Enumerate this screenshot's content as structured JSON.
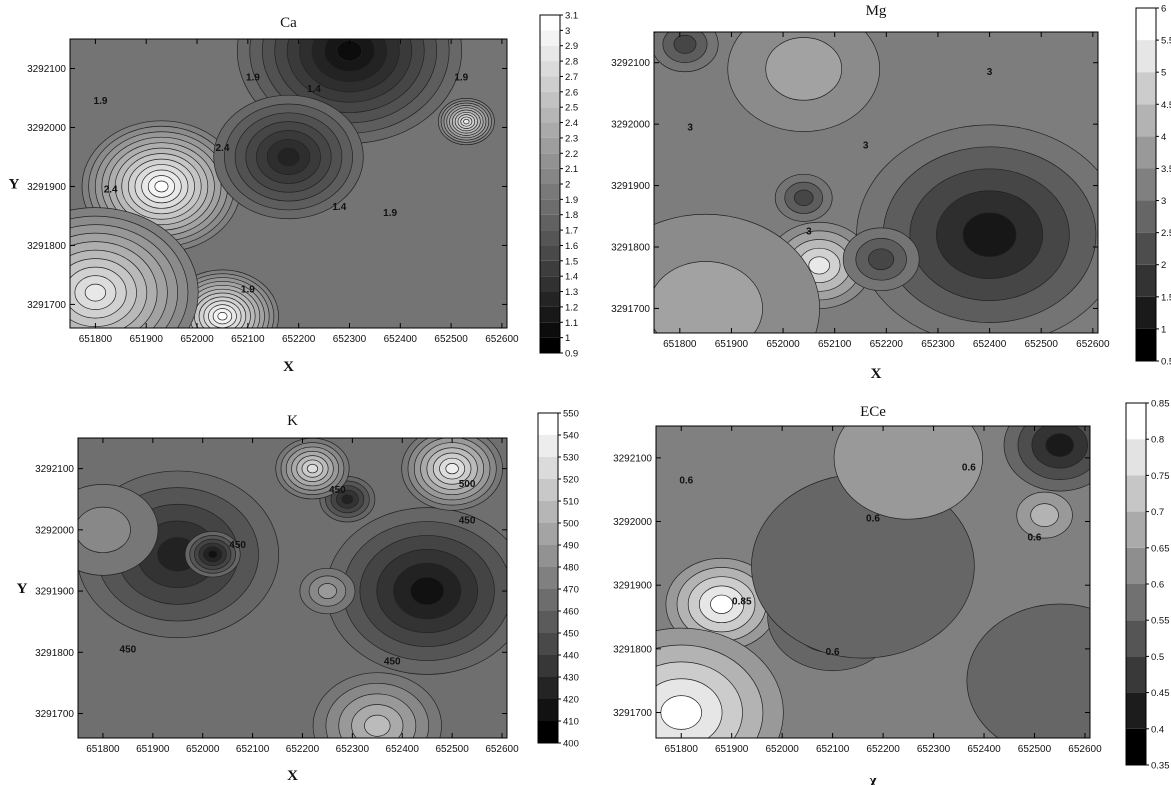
{
  "chart_data": [
    {
      "type": "heatmap",
      "title": "Ca",
      "xlabel": "X",
      "ylabel": "Y",
      "x_ticks": [
        651800,
        651900,
        652000,
        652100,
        652200,
        652300,
        652400,
        652500,
        652600
      ],
      "y_ticks": [
        3291700,
        3291800,
        3291900,
        3292000,
        3292100
      ],
      "xlim": [
        651750,
        652610
      ],
      "ylim": [
        3291660,
        3292150
      ],
      "colorbar_levels": [
        0.9,
        1,
        1.1,
        1.2,
        1.3,
        1.4,
        1.5,
        1.6,
        1.7,
        1.8,
        1.9,
        2,
        2.1,
        2.2,
        2.3,
        2.4,
        2.5,
        2.6,
        2.7,
        2.8,
        2.9,
        3,
        3.1
      ],
      "contour_labels": [
        {
          "x": 651810,
          "y": 3292040,
          "text": "1.9"
        },
        {
          "x": 652110,
          "y": 3292080,
          "text": "1.9"
        },
        {
          "x": 652050,
          "y": 3291960,
          "text": "2.4"
        },
        {
          "x": 651830,
          "y": 3291890,
          "text": "2.4"
        },
        {
          "x": 652230,
          "y": 3292060,
          "text": "1.4"
        },
        {
          "x": 652280,
          "y": 3291860,
          "text": "1.4"
        },
        {
          "x": 652380,
          "y": 3291850,
          "text": "1.9"
        },
        {
          "x": 652100,
          "y": 3291720,
          "text": "1.9"
        },
        {
          "x": 652520,
          "y": 3292080,
          "text": "1.9"
        }
      ],
      "features": [
        {
          "x": 651930,
          "y": 3291900,
          "value": 3.1,
          "spread": 85
        },
        {
          "x": 652050,
          "y": 3291680,
          "value": 3.1,
          "spread": 60
        },
        {
          "x": 651800,
          "y": 3291720,
          "value": 2.9,
          "spread": 110
        },
        {
          "x": 652300,
          "y": 3292130,
          "value": 0.95,
          "spread": 120
        },
        {
          "x": 652180,
          "y": 3291950,
          "value": 1.2,
          "spread": 80
        },
        {
          "x": 652530,
          "y": 3292010,
          "value": 2.9,
          "spread": 30
        },
        {
          "x": 652550,
          "y": 3291750,
          "value": 1.9,
          "spread": 110
        }
      ],
      "background_value": 1.9
    },
    {
      "type": "heatmap",
      "title": "Mg",
      "xlabel": "X",
      "ylabel": "",
      "x_ticks": [
        651800,
        651900,
        652000,
        652100,
        652200,
        652300,
        652400,
        652500,
        652600
      ],
      "y_ticks": [
        3291700,
        3291800,
        3291900,
        3292000,
        3292100
      ],
      "xlim": [
        651750,
        652610
      ],
      "ylim": [
        3291660,
        3292150
      ],
      "colorbar_levels": [
        0.5,
        1,
        1.5,
        2,
        2.5,
        3,
        3.5,
        4,
        4.5,
        5,
        5.5,
        6
      ],
      "contour_labels": [
        {
          "x": 651820,
          "y": 3291990,
          "text": "3"
        },
        {
          "x": 652400,
          "y": 3292080,
          "text": "3"
        },
        {
          "x": 652160,
          "y": 3291960,
          "text": "3"
        },
        {
          "x": 652050,
          "y": 3291820,
          "text": "3"
        }
      ],
      "features": [
        {
          "x": 652070,
          "y": 3291770,
          "value": 5.6,
          "spread": 55
        },
        {
          "x": 652400,
          "y": 3291820,
          "value": 1.0,
          "spread": 140
        },
        {
          "x": 652190,
          "y": 3291780,
          "value": 2.0,
          "spread": 40
        },
        {
          "x": 652040,
          "y": 3291880,
          "value": 2.0,
          "spread": 30
        },
        {
          "x": 652040,
          "y": 3292090,
          "value": 4.3,
          "spread": 80
        },
        {
          "x": 651810,
          "y": 3292130,
          "value": 2.0,
          "spread": 35
        },
        {
          "x": 651850,
          "y": 3291700,
          "value": 4.0,
          "spread": 120
        }
      ],
      "background_value": 3.2
    },
    {
      "type": "heatmap",
      "title": "K",
      "xlabel": "X",
      "ylabel": "Y",
      "x_ticks": [
        651800,
        651900,
        652000,
        652100,
        652200,
        652300,
        652400,
        652500,
        652600
      ],
      "y_ticks": [
        3291700,
        3291800,
        3291900,
        3292000,
        3292100
      ],
      "xlim": [
        651750,
        652610
      ],
      "ylim": [
        3291660,
        3292150
      ],
      "colorbar_levels": [
        400,
        410,
        420,
        430,
        440,
        450,
        460,
        470,
        480,
        490,
        500,
        510,
        520,
        530,
        540,
        550
      ],
      "contour_labels": [
        {
          "x": 652070,
          "y": 3291970,
          "text": "450"
        },
        {
          "x": 651850,
          "y": 3291800,
          "text": "450"
        },
        {
          "x": 652270,
          "y": 3292060,
          "text": "450"
        },
        {
          "x": 652530,
          "y": 3292070,
          "text": "500"
        },
        {
          "x": 652530,
          "y": 3292010,
          "text": "450"
        },
        {
          "x": 652380,
          "y": 3291780,
          "text": "450"
        }
      ],
      "features": [
        {
          "x": 651950,
          "y": 3291960,
          "value": 420,
          "spread": 110
        },
        {
          "x": 652020,
          "y": 3291960,
          "value": 405,
          "spread": 30
        },
        {
          "x": 652450,
          "y": 3291900,
          "value": 405,
          "spread": 110
        },
        {
          "x": 652290,
          "y": 3292050,
          "value": 420,
          "spread": 30
        },
        {
          "x": 652500,
          "y": 3292100,
          "value": 545,
          "spread": 55
        },
        {
          "x": 652220,
          "y": 3292100,
          "value": 530,
          "spread": 40
        },
        {
          "x": 652250,
          "y": 3291900,
          "value": 490,
          "spread": 30
        },
        {
          "x": 652350,
          "y": 3291680,
          "value": 510,
          "spread": 70
        },
        {
          "x": 651800,
          "y": 3292000,
          "value": 480,
          "spread": 60
        }
      ],
      "background_value": 465
    },
    {
      "type": "heatmap",
      "title": "ECe",
      "xlabel": "χ",
      "ylabel": "",
      "x_ticks": [
        651800,
        651900,
        652000,
        652100,
        652200,
        652300,
        652400,
        652500,
        652600
      ],
      "y_ticks": [
        3291700,
        3291800,
        3291900,
        3292000,
        3292100
      ],
      "xlim": [
        651750,
        652610
      ],
      "ylim": [
        3291660,
        3292150
      ],
      "colorbar_levels": [
        0.35,
        0.4,
        0.45,
        0.5,
        0.55,
        0.6,
        0.65,
        0.7,
        0.75,
        0.8,
        0.85
      ],
      "contour_labels": [
        {
          "x": 651810,
          "y": 3292060,
          "text": "0.6"
        },
        {
          "x": 652370,
          "y": 3292080,
          "text": "0.6"
        },
        {
          "x": 652180,
          "y": 3292000,
          "text": "0.6"
        },
        {
          "x": 652500,
          "y": 3291970,
          "text": "0.6"
        },
        {
          "x": 651920,
          "y": 3291870,
          "text": "0.85"
        },
        {
          "x": 652100,
          "y": 3291790,
          "text": "0.6"
        }
      ],
      "features": [
        {
          "x": 651880,
          "y": 3291870,
          "value": 0.87,
          "spread": 60
        },
        {
          "x": 651800,
          "y": 3291700,
          "value": 0.87,
          "spread": 110
        },
        {
          "x": 652100,
          "y": 3291850,
          "value": 0.45,
          "spread": 70
        },
        {
          "x": 652160,
          "y": 3291930,
          "value": 0.52,
          "spread": 120
        },
        {
          "x": 652550,
          "y": 3292120,
          "value": 0.38,
          "spread": 60
        },
        {
          "x": 652520,
          "y": 3292010,
          "value": 0.7,
          "spread": 30
        },
        {
          "x": 652250,
          "y": 3292100,
          "value": 0.68,
          "spread": 80
        },
        {
          "x": 652550,
          "y": 3291750,
          "value": 0.52,
          "spread": 100
        }
      ],
      "background_value": 0.6
    }
  ]
}
